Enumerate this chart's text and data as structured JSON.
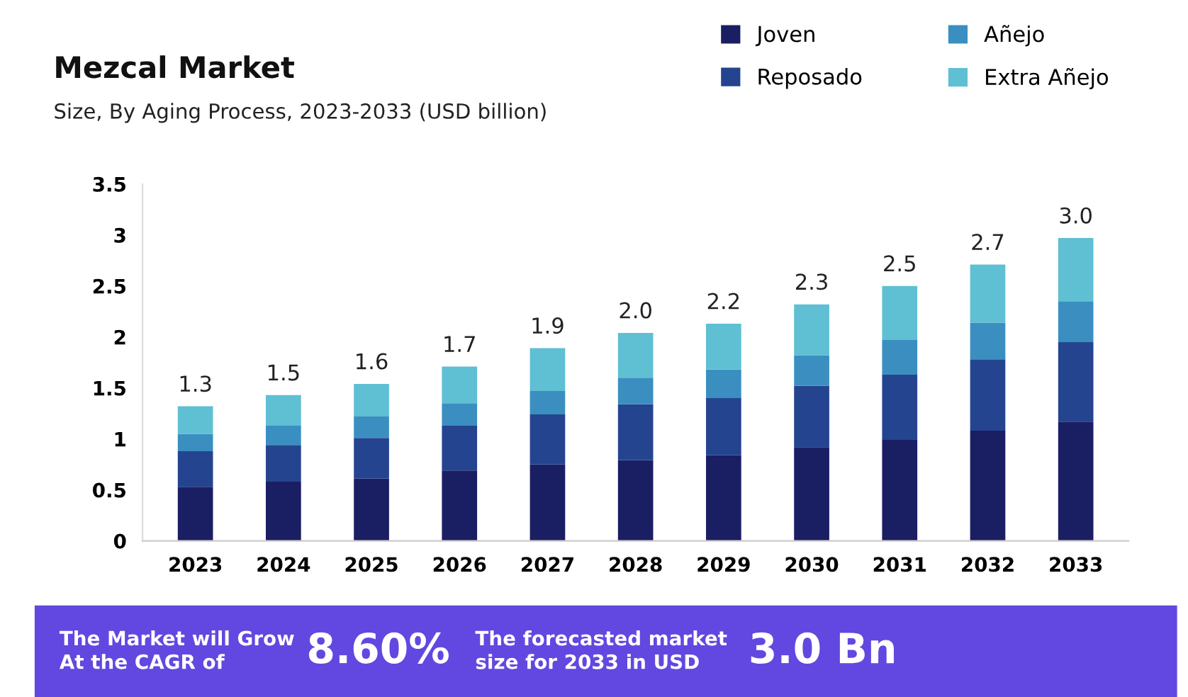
{
  "chart_data": {
    "type": "bar",
    "title": "Mezcal Market",
    "subtitle": "Size, By Aging Process, 2023-2033 (USD billion)",
    "categories": [
      "2023",
      "2024",
      "2025",
      "2026",
      "2027",
      "2028",
      "2029",
      "2030",
      "2031",
      "2032",
      "2033"
    ],
    "series": [
      {
        "name": "Joven",
        "color": "#1a1f63",
        "values": [
          0.53,
          0.58,
          0.61,
          0.69,
          0.75,
          0.79,
          0.84,
          0.92,
          0.99,
          1.08,
          1.17
        ]
      },
      {
        "name": "Reposado",
        "color": "#25448f",
        "values": [
          0.35,
          0.36,
          0.4,
          0.44,
          0.49,
          0.55,
          0.56,
          0.6,
          0.64,
          0.7,
          0.78
        ]
      },
      {
        "name": "Añejo",
        "color": "#3a8fc0",
        "values": [
          0.17,
          0.19,
          0.21,
          0.22,
          0.23,
          0.26,
          0.28,
          0.3,
          0.34,
          0.36,
          0.4
        ]
      },
      {
        "name": "Extra Añejo",
        "color": "#5fbfd3",
        "values": [
          0.27,
          0.3,
          0.32,
          0.36,
          0.42,
          0.44,
          0.45,
          0.5,
          0.53,
          0.57,
          0.62
        ]
      }
    ],
    "stacked": true,
    "totals": [
      "1.3",
      "1.5",
      "1.6",
      "1.7",
      "1.9",
      "2.0",
      "2.2",
      "2.3",
      "2.5",
      "2.7",
      "3.0"
    ],
    "ylim": [
      0,
      3.5
    ],
    "yticks": [
      0,
      0.5,
      1,
      1.5,
      2,
      2.5,
      3,
      3.5
    ],
    "grid": false,
    "legend": "top right",
    "annotations": [
      "The Market will Grow\nAt the CAGR of",
      "8.60%",
      "The forecasted market\nsize for 2033 in USD",
      "3.0 Bn"
    ]
  }
}
